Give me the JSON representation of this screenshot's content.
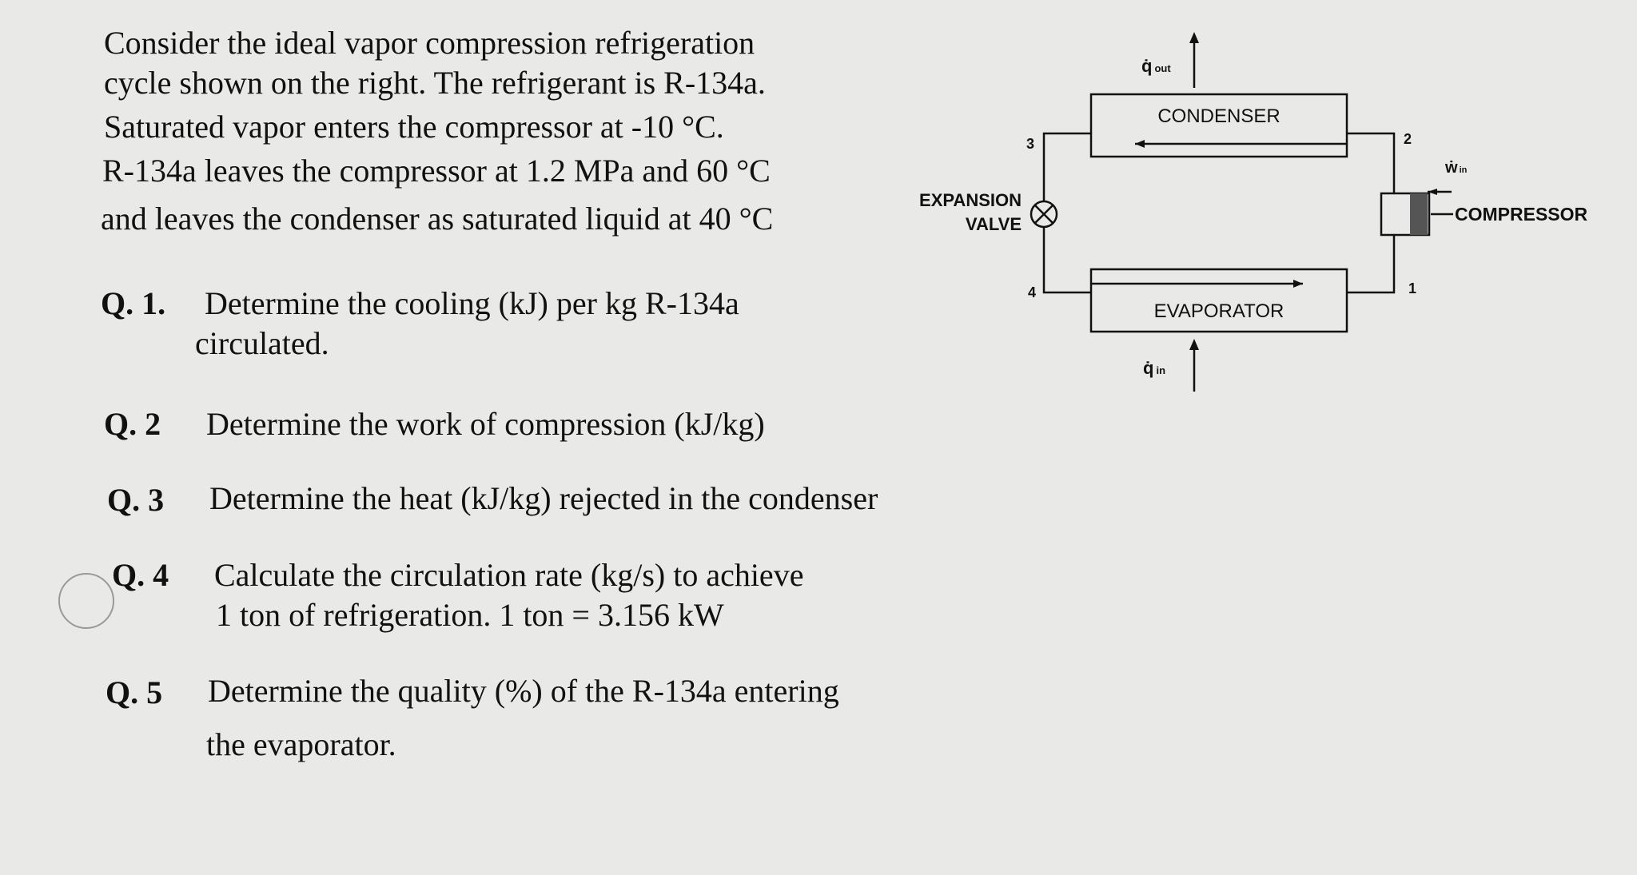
{
  "intro": [
    "Consider the ideal vapor compression refrigeration",
    "cycle shown on the right.  The refrigerant is R-134a.",
    "Saturated vapor enters the compressor at -10 °C.",
    "R-134a leaves the compressor at 1.2 MPa and 60 °C",
    "and leaves the condenser as saturated liquid at 40 °C"
  ],
  "questions": [
    {
      "label": "Q. 1.",
      "lines": [
        "Determine the cooling (kJ) per kg R-134a",
        "circulated."
      ]
    },
    {
      "label": "Q. 2",
      "lines": [
        "Determine the work of compression (kJ/kg)"
      ]
    },
    {
      "label": "Q. 3",
      "lines": [
        "Determine the heat (kJ/kg) rejected in the condenser"
      ]
    },
    {
      "label": "Q. 4",
      "lines": [
        "Calculate the circulation rate (kg/s) to achieve",
        "1 ton of refrigeration.  1 ton = 3.156 kW"
      ]
    },
    {
      "label": "Q. 5",
      "lines": [
        "Determine the quality (%) of the R-134a entering",
        "the evaporator."
      ]
    }
  ],
  "diagram": {
    "q_out": {
      "symbol": "q̇",
      "sub": "out"
    },
    "condenser": "CONDENSER",
    "evaporator": "EVAPORATOR",
    "compressor": "COMPRESSOR",
    "valve": [
      "EXPANSION",
      "VALVE"
    ],
    "w_in": {
      "symbol": "ẇ",
      "sub": "in"
    },
    "q_in": {
      "symbol": "q̇",
      "sub": "in"
    },
    "states": [
      "1",
      "2",
      "3",
      "4"
    ]
  }
}
